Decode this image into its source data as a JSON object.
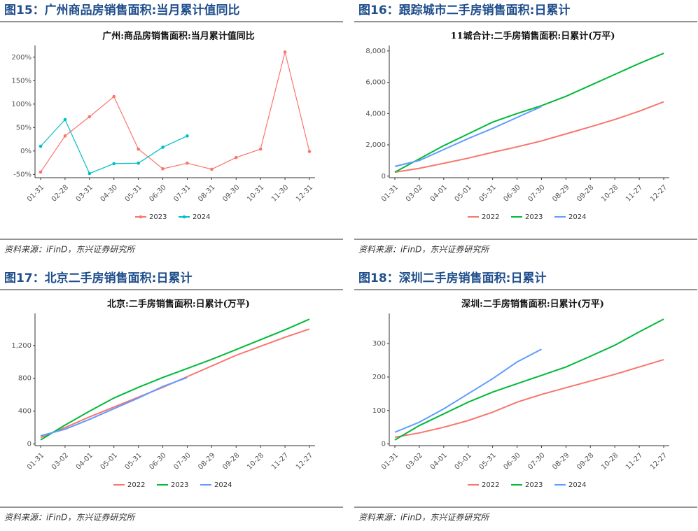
{
  "panels": [
    {
      "heading": "图15：广州商品房销售面积:当月累计值同比",
      "source": "资料来源：iFinD，东兴证券研究所"
    },
    {
      "heading": "图16：跟踪城市二手房销售面积:日累计",
      "source": "资料来源：iFinD，东兴证券研究所"
    },
    {
      "heading": "图17：北京二手房销售面积:日累计",
      "source": "资料来源：iFinD，东兴证券研究所"
    },
    {
      "heading": "图18：深圳二手房销售面积:日累计",
      "source": "资料来源：iFinD，东兴证券研究所"
    }
  ],
  "chart_data": [
    {
      "type": "line",
      "title": "广州:商品房销售面积:当月累计值同比",
      "markers": true,
      "categories": [
        "01-31",
        "02-28",
        "03-31",
        "04-30",
        "05-31",
        "06-30",
        "07-31",
        "08-31",
        "09-30",
        "10-31",
        "11-30",
        "12-31"
      ],
      "series": [
        {
          "name": "2023",
          "color": "#f8766d",
          "values": [
            -45,
            32,
            73,
            116,
            4,
            -38,
            -26,
            -39,
            -14,
            4,
            211,
            -1
          ]
        },
        {
          "name": "2024",
          "color": "#00bfc4",
          "values": [
            10,
            67,
            -48,
            -27,
            -26,
            8,
            32,
            null,
            null,
            null,
            null,
            null
          ]
        }
      ],
      "ylim": [
        -57,
        225
      ],
      "yticks": [
        {
          "value": -50,
          "label": "-50%"
        },
        {
          "value": 0,
          "label": "0%"
        },
        {
          "value": 50,
          "label": "50%"
        },
        {
          "value": 100,
          "label": "100%"
        },
        {
          "value": 150,
          "label": "150%"
        },
        {
          "value": 200,
          "label": "200%"
        }
      ]
    },
    {
      "type": "line",
      "title": "11城合计:二手房销售面积:日累计(万平)",
      "markers": false,
      "categories": [
        "01-31",
        "03-02",
        "04-01",
        "05-01",
        "05-31",
        "06-30",
        "07-30",
        "08-29",
        "09-28",
        "10-28",
        "11-27",
        "12-27"
      ],
      "series": [
        {
          "name": "2022",
          "color": "#f8766d",
          "values": [
            250,
            500,
            820,
            1150,
            1520,
            1870,
            2250,
            2700,
            3150,
            3620,
            4150,
            4750
          ]
        },
        {
          "name": "2023",
          "color": "#00ba38",
          "values": [
            250,
            1100,
            1950,
            2700,
            3450,
            4000,
            4500,
            5100,
            5800,
            6500,
            7200,
            7850
          ]
        },
        {
          "name": "2024",
          "color": "#619cff",
          "values": [
            620,
            1000,
            1700,
            2400,
            3050,
            3750,
            4450,
            null,
            null,
            null,
            null,
            null
          ]
        }
      ],
      "ylim": [
        -100,
        8350
      ],
      "yticks": [
        0,
        {
          "value": 2000,
          "label": "2,000"
        },
        {
          "value": 4000,
          "label": "4,000"
        },
        {
          "value": 6000,
          "label": "6,000"
        },
        {
          "value": 8000,
          "label": "8,000"
        }
      ]
    },
    {
      "type": "line",
      "title": "北京:二手房销售面积:日累计(万平)",
      "markers": false,
      "categories": [
        "01-31",
        "03-02",
        "04-01",
        "05-01",
        "05-31",
        "06-30",
        "07-30",
        "08-29",
        "09-28",
        "10-28",
        "11-27",
        "12-27"
      ],
      "series": [
        {
          "name": "2022",
          "color": "#f8766d",
          "values": [
            80,
            200,
            330,
            450,
            570,
            690,
            820,
            950,
            1080,
            1190,
            1300,
            1400
          ]
        },
        {
          "name": "2023",
          "color": "#00ba38",
          "values": [
            50,
            230,
            400,
            560,
            690,
            810,
            920,
            1030,
            1150,
            1270,
            1390,
            1520
          ]
        },
        {
          "name": "2024",
          "color": "#619cff",
          "values": [
            100,
            180,
            300,
            430,
            560,
            700,
            810,
            null,
            null,
            null,
            null,
            null
          ]
        }
      ],
      "ylim": [
        -20,
        1590
      ],
      "yticks": [
        0,
        400,
        800,
        {
          "value": 1200,
          "label": "1,200"
        }
      ]
    },
    {
      "type": "line",
      "title": "深圳:二手房销售面积:日累计(万平)",
      "markers": false,
      "categories": [
        "01-31",
        "03-02",
        "04-01",
        "05-01",
        "05-31",
        "06-30",
        "07-30",
        "08-29",
        "09-28",
        "10-28",
        "11-27",
        "12-27"
      ],
      "series": [
        {
          "name": "2022",
          "color": "#f8766d",
          "values": [
            20,
            33,
            50,
            70,
            95,
            125,
            148,
            168,
            188,
            208,
            230,
            252
          ]
        },
        {
          "name": "2023",
          "color": "#00ba38",
          "values": [
            12,
            55,
            90,
            125,
            155,
            180,
            205,
            230,
            262,
            295,
            335,
            373
          ]
        },
        {
          "name": "2024",
          "color": "#619cff",
          "values": [
            35,
            65,
            105,
            150,
            195,
            245,
            283,
            null,
            null,
            null,
            null,
            null
          ]
        }
      ],
      "ylim": [
        -5,
        390
      ],
      "yticks": [
        0,
        100,
        200,
        300
      ]
    }
  ]
}
